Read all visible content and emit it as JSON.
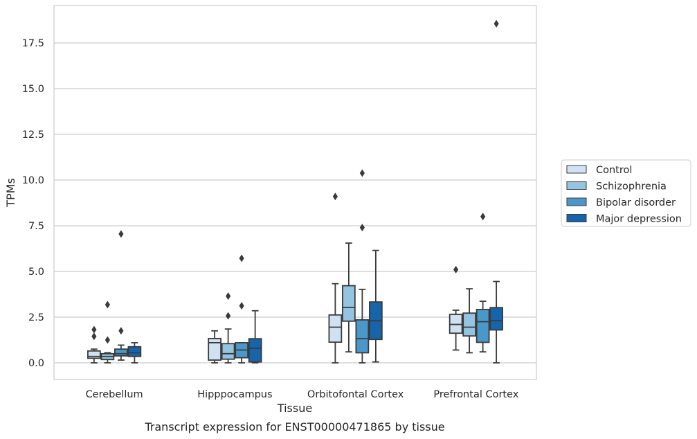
{
  "caption": "Transcript expression for ENST00000471865 by tissue",
  "chart_data": {
    "type": "box",
    "xlabel": "Tissue",
    "ylabel": "TPMs",
    "ylim": [
      -0.9,
      19.45
    ],
    "yticks": [
      "0.0",
      "2.5",
      "5.0",
      "7.5",
      "10.0",
      "12.5",
      "15.0",
      "17.5"
    ],
    "ytick_values": [
      0,
      2.5,
      5,
      7.5,
      10,
      12.5,
      15,
      17.5
    ],
    "grid": "horizontal",
    "legend_position": "right",
    "categories": [
      "Cerebellum",
      "Hipppocampus",
      "Orbitofontal Cortex",
      "Prefrontal Cortex"
    ],
    "series": [
      {
        "name": "Control",
        "color": "#d0e1f2",
        "boxes": [
          {
            "whislo": 0.0,
            "q1": 0.25,
            "med": 0.35,
            "q3": 0.65,
            "whishi": 0.75,
            "fliers": [
              1.45,
              1.82
            ]
          },
          {
            "whislo": 0.0,
            "q1": 0.15,
            "med": 1.1,
            "q3": 1.33,
            "whishi": 1.75,
            "fliers": []
          },
          {
            "whislo": 0.0,
            "q1": 1.13,
            "med": 1.95,
            "q3": 2.62,
            "whishi": 4.33,
            "fliers": [
              9.1
            ]
          },
          {
            "whislo": 0.7,
            "q1": 1.62,
            "med": 2.1,
            "q3": 2.65,
            "whishi": 2.88,
            "fliers": [
              5.1
            ]
          }
        ]
      },
      {
        "name": "Schizophrenia",
        "color": "#94c4df",
        "boxes": [
          {
            "whislo": 0.0,
            "q1": 0.18,
            "med": 0.35,
            "q3": 0.5,
            "whishi": 0.55,
            "fliers": [
              1.25,
              3.18
            ]
          },
          {
            "whislo": 0.0,
            "q1": 0.2,
            "med": 0.5,
            "q3": 1.05,
            "whishi": 1.85,
            "fliers": [
              2.57,
              3.65
            ]
          },
          {
            "whislo": 0.6,
            "q1": 2.28,
            "med": 3.03,
            "q3": 4.22,
            "whishi": 6.55,
            "fliers": []
          },
          {
            "whislo": 0.55,
            "q1": 1.47,
            "med": 1.95,
            "q3": 2.72,
            "whishi": 4.05,
            "fliers": []
          }
        ]
      },
      {
        "name": "Bipolar disorder",
        "color": "#4a98c9",
        "boxes": [
          {
            "whislo": 0.15,
            "q1": 0.38,
            "med": 0.5,
            "q3": 0.75,
            "whishi": 0.97,
            "fliers": [
              1.75,
              7.05
            ]
          },
          {
            "whislo": 0.0,
            "q1": 0.28,
            "med": 0.7,
            "q3": 1.1,
            "whishi": 1.1,
            "fliers": [
              3.12,
              5.72
            ]
          },
          {
            "whislo": 0.0,
            "q1": 0.55,
            "med": 1.32,
            "q3": 2.35,
            "whishi": 4.02,
            "fliers": [
              7.4,
              10.38
            ]
          },
          {
            "whislo": 0.6,
            "q1": 1.12,
            "med": 2.25,
            "q3": 2.92,
            "whishi": 3.37,
            "fliers": [
              8.0
            ]
          }
        ]
      },
      {
        "name": "Major depression",
        "color": "#1764ab",
        "boxes": [
          {
            "whislo": 0.0,
            "q1": 0.35,
            "med": 0.55,
            "q3": 0.88,
            "whishi": 1.1,
            "fliers": []
          },
          {
            "whislo": 0.0,
            "q1": 0.05,
            "med": 0.8,
            "q3": 1.32,
            "whishi": 2.85,
            "fliers": []
          },
          {
            "whislo": 0.05,
            "q1": 1.28,
            "med": 2.3,
            "q3": 3.33,
            "whishi": 6.15,
            "fliers": []
          },
          {
            "whislo": 0.0,
            "q1": 1.8,
            "med": 2.3,
            "q3": 3.02,
            "whishi": 4.45,
            "fliers": [
              18.55
            ]
          }
        ]
      }
    ]
  }
}
